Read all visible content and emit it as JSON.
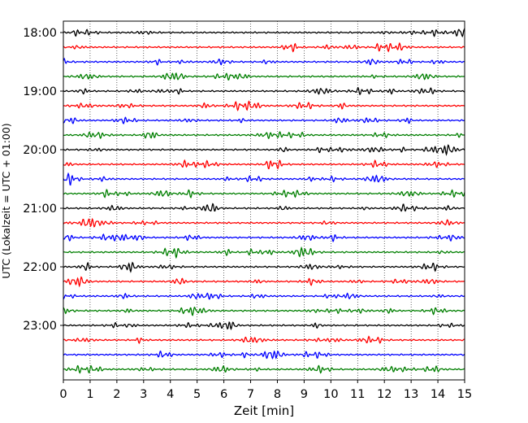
{
  "chart_data": {
    "type": "line",
    "title": "",
    "xlabel": "Zeit  [min]",
    "ylabel": "UTC (Lokalzeit = UTC + 01:00)",
    "xlim": [
      0,
      15
    ],
    "x_ticks": [
      "0",
      "1",
      "2",
      "3",
      "4",
      "5",
      "6",
      "7",
      "8",
      "9",
      "10",
      "11",
      "12",
      "13",
      "14",
      "15"
    ],
    "y_ticks": [
      "18:00",
      "19:00",
      "20:00",
      "21:00",
      "22:00",
      "23:00"
    ],
    "grid": "vertical dotted",
    "trace_interval_minutes": 15,
    "trace_start": "18:00",
    "trace_count": 24,
    "trace_colors": [
      "#000000",
      "#ff0000",
      "#0000ff",
      "#007f00"
    ]
  }
}
